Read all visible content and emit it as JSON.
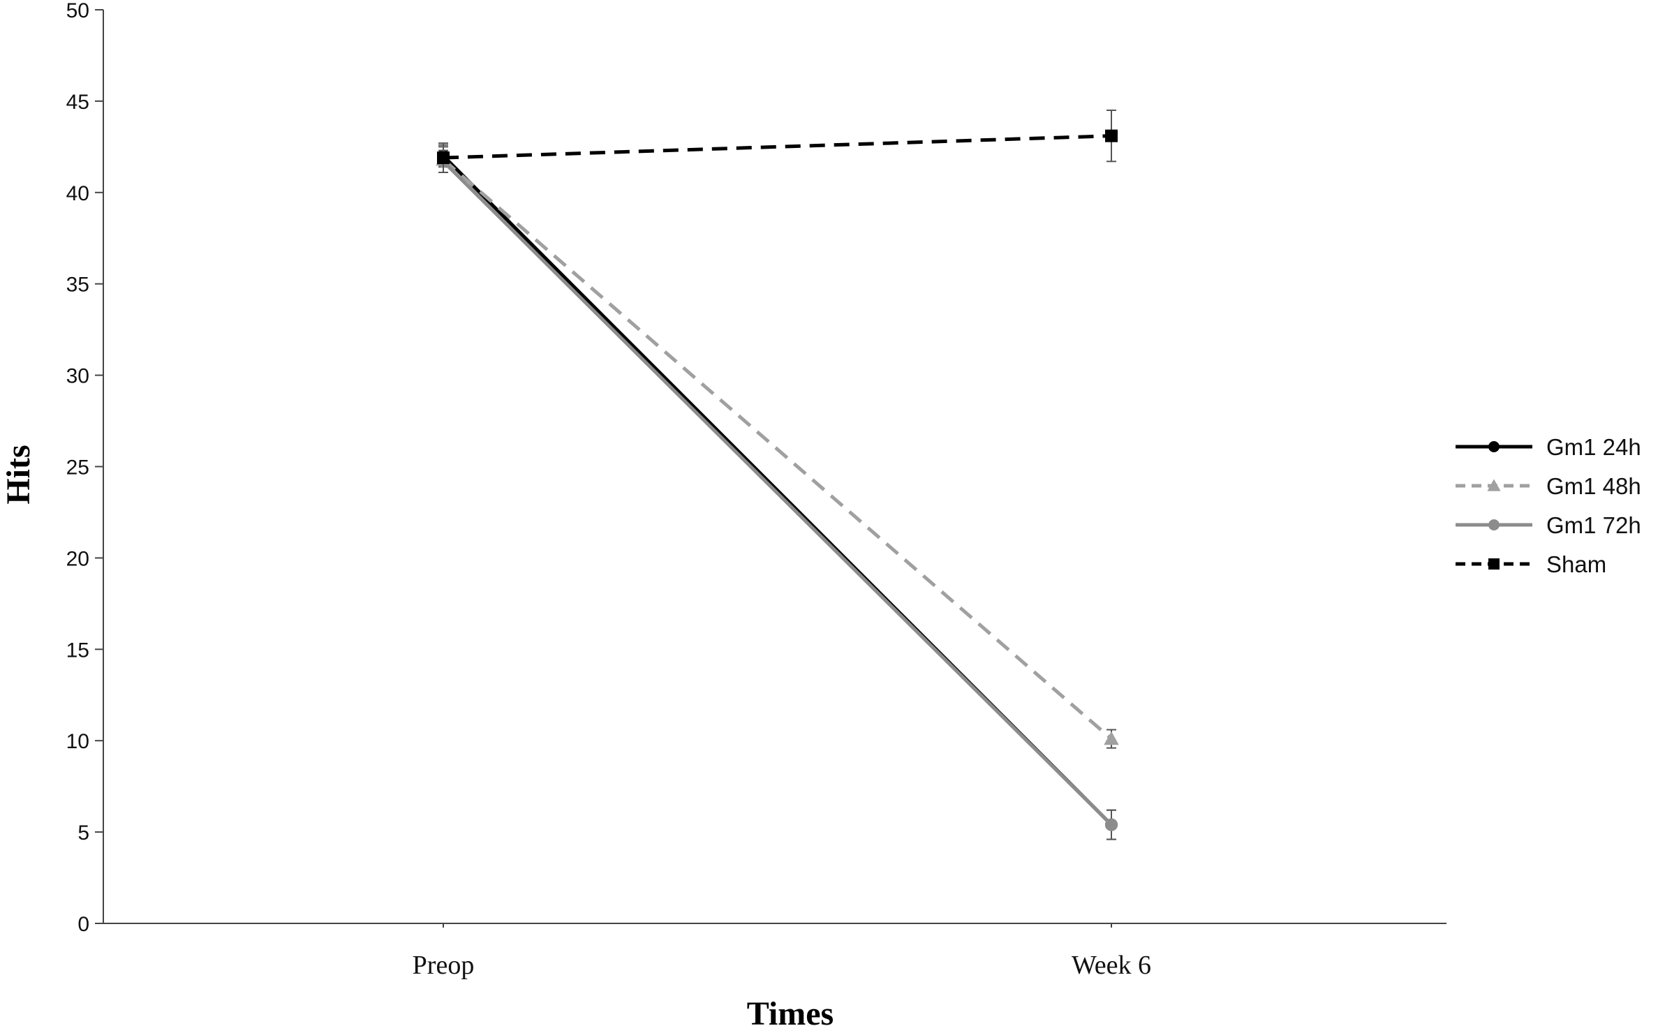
{
  "chart_data": {
    "type": "line",
    "categories": [
      "Preop",
      "Week 6"
    ],
    "xlabel": "Times",
    "ylabel": "Hits",
    "ylim": [
      0,
      50
    ],
    "ytick_step": 5,
    "grid": false,
    "legend_position": "right",
    "series": [
      {
        "name": "Gm1 24h",
        "values": [
          42.0,
          5.4
        ],
        "errors": [
          0.6,
          0.8
        ],
        "color": "#000000",
        "dash": "solid",
        "marker": "circle"
      },
      {
        "name": "Gm1 48h",
        "values": [
          41.8,
          10.1
        ],
        "errors": [
          0.7,
          0.5
        ],
        "color": "#a0a0a0",
        "dash": "dashed",
        "marker": "triangle"
      },
      {
        "name": "Gm1 72h",
        "values": [
          41.7,
          5.4
        ],
        "errors": [
          0.6,
          0.8
        ],
        "color": "#8c8c8c",
        "dash": "solid",
        "marker": "circle"
      },
      {
        "name": "Sham",
        "values": [
          41.9,
          43.1
        ],
        "errors": [
          0.8,
          1.4
        ],
        "color": "#000000",
        "dash": "dashed",
        "marker": "square"
      }
    ]
  }
}
